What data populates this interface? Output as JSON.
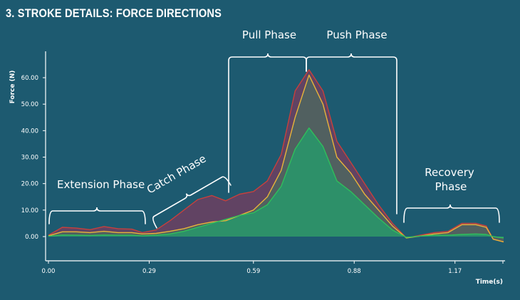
{
  "header": {
    "title": "3. STROKE DETAILS: FORCE DIRECTIONS"
  },
  "chart_data": {
    "type": "area",
    "title": "3. STROKE DETAILS: FORCE DIRECTIONS",
    "xlabel": "Time(s)",
    "ylabel": "Force (N)",
    "xlim": [
      0,
      1.31
    ],
    "ylim": [
      -5,
      67
    ],
    "x_ticks": [
      0.0,
      0.29,
      0.59,
      0.88,
      1.17
    ],
    "x_tick_labels": [
      "0.00",
      "0.29",
      "0.59",
      "0.88",
      "1.17"
    ],
    "y_ticks": [
      0,
      10,
      20,
      30,
      40,
      50,
      60
    ],
    "y_tick_labels": [
      "0.00",
      "10.00",
      "20.00",
      "30.00",
      "40.00",
      "50.00",
      "60.00"
    ],
    "grid": false,
    "x": [
      0.0,
      0.04,
      0.08,
      0.12,
      0.16,
      0.2,
      0.24,
      0.27,
      0.31,
      0.35,
      0.39,
      0.43,
      0.47,
      0.51,
      0.55,
      0.59,
      0.63,
      0.67,
      0.71,
      0.75,
      0.79,
      0.83,
      0.87,
      0.91,
      0.95,
      0.99,
      1.03,
      1.07,
      1.11,
      1.15,
      1.19,
      1.23,
      1.26,
      1.28,
      1.31
    ],
    "series": [
      {
        "color": "#c8403c",
        "values": [
          0.5,
          3.5,
          3.2,
          2.6,
          3.8,
          3.0,
          2.8,
          1.5,
          2.5,
          6.0,
          10.0,
          14.0,
          15.5,
          13.5,
          16.0,
          17.0,
          21.0,
          31.0,
          55.0,
          63.0,
          55.0,
          36.0,
          28.0,
          20.0,
          12.0,
          5.0,
          -0.5,
          0.5,
          1.5,
          2.0,
          5.0,
          5.0,
          4.0,
          -1.0,
          -2.0
        ]
      },
      {
        "color": "#e8b43a",
        "values": [
          0.3,
          1.8,
          1.8,
          1.5,
          2.0,
          1.5,
          1.5,
          1.0,
          1.2,
          2.0,
          3.0,
          4.5,
          5.5,
          6.0,
          8.0,
          10.0,
          15.0,
          25.0,
          45.0,
          61.0,
          50.0,
          30.0,
          24.0,
          16.0,
          10.0,
          4.0,
          -0.5,
          0.2,
          1.0,
          1.5,
          4.5,
          4.5,
          3.5,
          -1.0,
          -2.0
        ]
      },
      {
        "color": "#2fbf5c",
        "values": [
          0.1,
          0.6,
          0.5,
          0.4,
          0.6,
          0.5,
          0.5,
          0.3,
          0.5,
          1.0,
          2.0,
          3.5,
          5.0,
          6.5,
          8.0,
          9.0,
          12.0,
          19.0,
          33.0,
          41.0,
          34.0,
          21.0,
          17.0,
          12.0,
          7.0,
          2.5,
          -0.3,
          0.2,
          0.5,
          0.5,
          0.8,
          1.0,
          0.8,
          0.0,
          -0.5
        ]
      }
    ],
    "annotations": [
      {
        "text": "Extension Phase",
        "x_range": [
          0.0,
          0.28
        ],
        "position": "below-curve"
      },
      {
        "text": "Catch Phase",
        "x_range": [
          0.3,
          0.52
        ],
        "position": "rotated"
      },
      {
        "text": "Pull Phase",
        "x_range": [
          0.52,
          0.75
        ],
        "position": "top"
      },
      {
        "text": "Push Phase",
        "x_range": [
          0.75,
          1.01
        ],
        "position": "top"
      },
      {
        "text": "Recovery",
        "text2": "Phase",
        "x_range": [
          1.03,
          1.31
        ],
        "position": "above-curve"
      }
    ]
  }
}
